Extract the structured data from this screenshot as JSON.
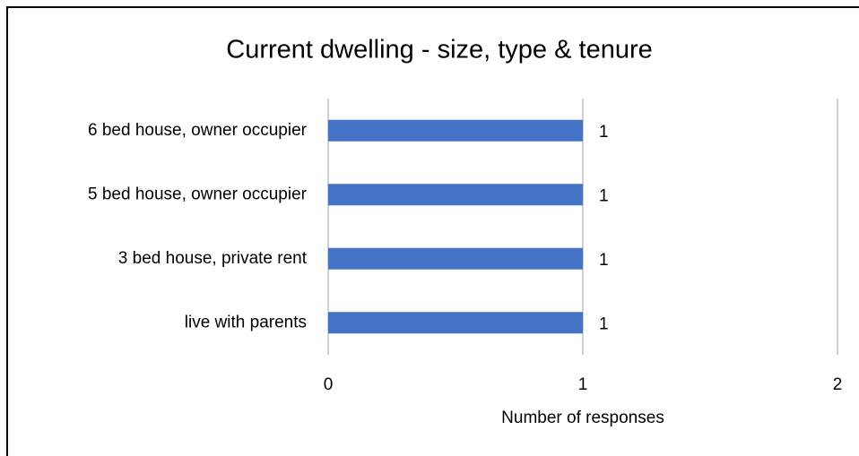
{
  "chart_data": {
    "type": "bar",
    "orientation": "horizontal",
    "title": "Current dwelling - size, type & tenure",
    "x_label": "Number of responses",
    "categories": [
      "6 bed house, owner occupier",
      "5 bed house, owner occupier",
      "3 bed house, private rent",
      "live with parents"
    ],
    "values": [
      1,
      1,
      1,
      1
    ],
    "color": "#4472c4",
    "xlim": [
      0,
      2
    ],
    "xticks": [
      0,
      1,
      2
    ],
    "grid": true
  }
}
